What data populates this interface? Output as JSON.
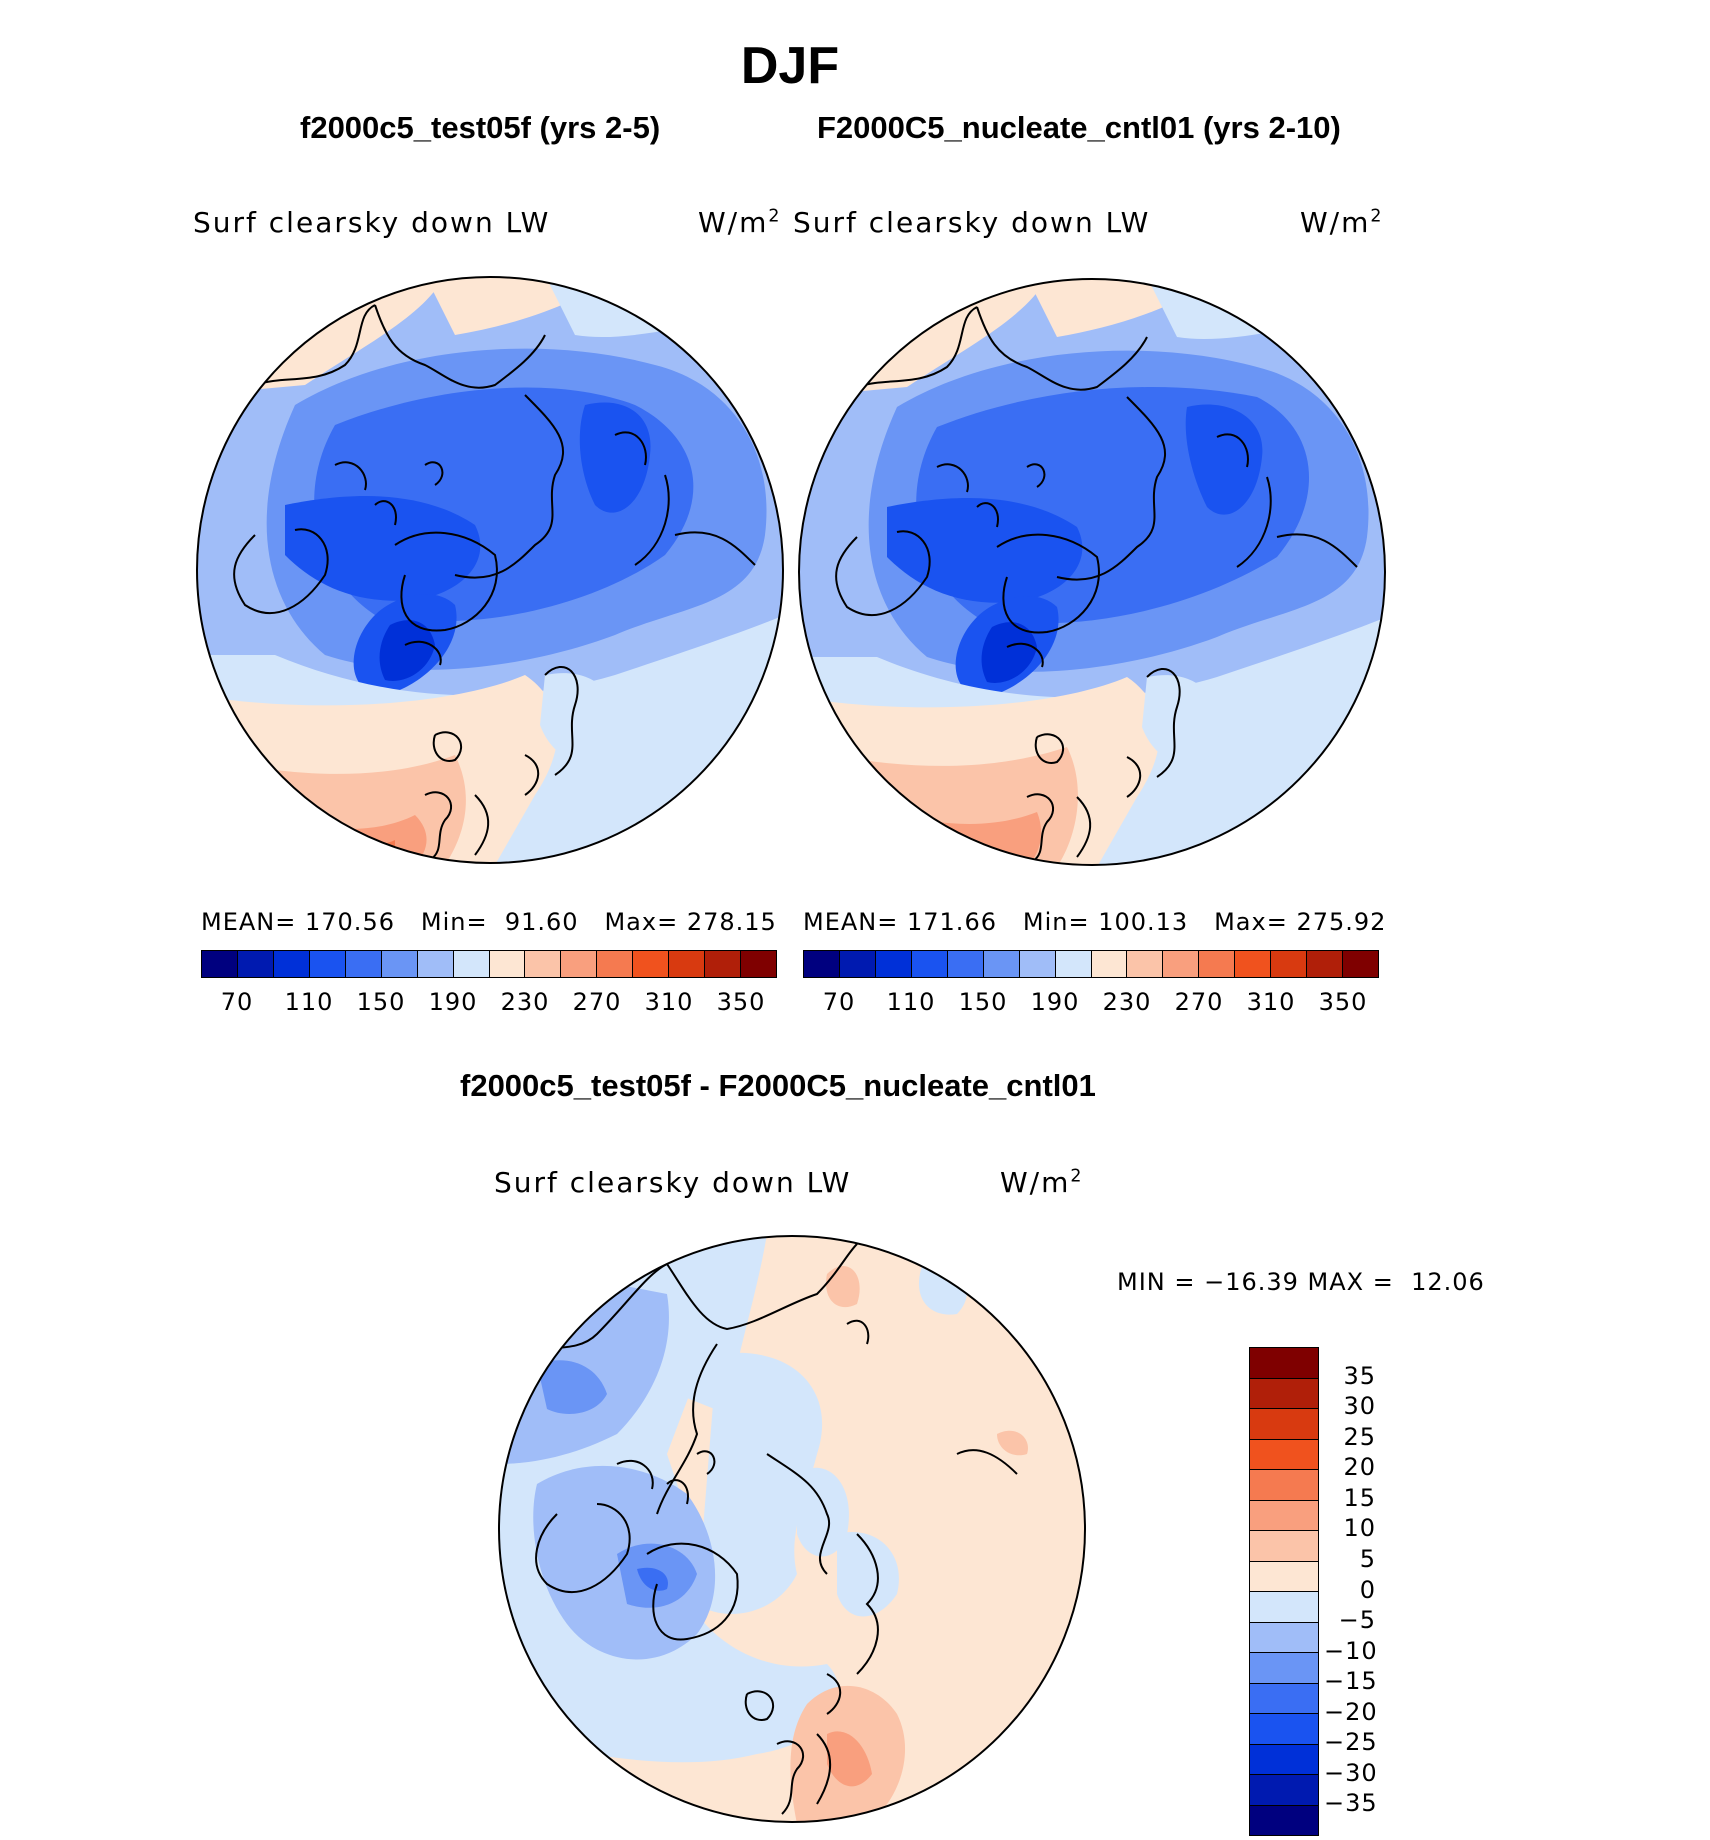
{
  "title": "DJF",
  "variable": "Surf clearsky down LW",
  "units_base": "W/m",
  "units_exp": "2",
  "panels": [
    {
      "subtitle": "f2000c5_test05f (yrs 2-5)",
      "mean_label": "MEAN=",
      "mean": "170.56",
      "min_label": "Min=",
      "min": "91.60",
      "max_label": "Max=",
      "max": "278.15"
    },
    {
      "subtitle": "F2000C5_nucleate_cntl01 (yrs 2-10)",
      "mean_label": "MEAN=",
      "mean": "171.66",
      "min_label": "Min=",
      "min": "100.13",
      "max_label": "Max=",
      "max": "275.92"
    }
  ],
  "abs_colorbar": {
    "colors": [
      "#00007f",
      "#001ab0",
      "#0030d8",
      "#1a53f0",
      "#3a6ef3",
      "#6a95f5",
      "#a0bdf8",
      "#d3e6fb",
      "#fde6d3",
      "#fbc4a9",
      "#f99f7e",
      "#f57a50",
      "#f0521e",
      "#d83a10",
      "#b01f09",
      "#7f0000"
    ],
    "labels": [
      "70",
      "110",
      "150",
      "190",
      "230",
      "270",
      "310",
      "350"
    ]
  },
  "diff": {
    "subtitle": "f2000c5_test05f - F2000C5_nucleate_cntl01",
    "min_max_text": "MIN = −16.39 MAX =  12.06",
    "colorbar_colors": [
      "#7f0000",
      "#b01f09",
      "#d83a10",
      "#f0521e",
      "#f57a50",
      "#f99f7e",
      "#fbc4a9",
      "#fde6d3",
      "#d3e6fb",
      "#a0bdf8",
      "#6a95f5",
      "#3a6ef3",
      "#1a53f0",
      "#0030d8",
      "#001ab0",
      "#00007f"
    ],
    "labels": [
      "35",
      "30",
      "25",
      "20",
      "15",
      "10",
      "5",
      "0",
      "−5",
      "−10",
      "−15",
      "−20",
      "−25",
      "−30",
      "−35"
    ]
  }
}
